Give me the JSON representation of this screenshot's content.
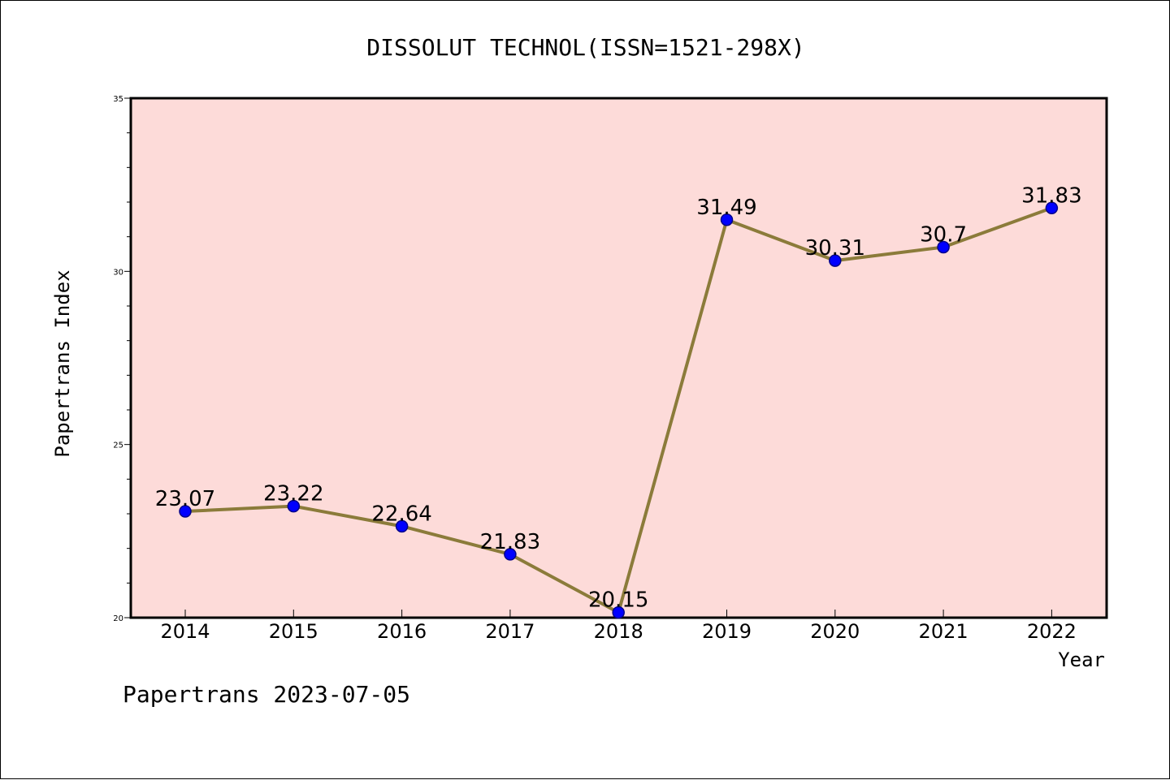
{
  "chart_data": {
    "type": "line",
    "title": "DISSOLUT TECHNOL(ISSN=1521-298X)",
    "xlabel": "Year",
    "ylabel": "Papertrans Index",
    "x": [
      "2014",
      "2015",
      "2016",
      "2017",
      "2018",
      "2019",
      "2020",
      "2021",
      "2022"
    ],
    "series": [
      {
        "values": [
          23.07,
          23.22,
          22.64,
          21.83,
          20.15,
          31.49,
          30.31,
          30.7,
          31.83
        ],
        "labels": [
          "23.07",
          "23.22",
          "22.64",
          "21.83",
          "20.15",
          "31.49",
          "30.31",
          "30.7",
          "31.83"
        ]
      }
    ],
    "ylim": [
      20,
      35
    ],
    "yticks": [
      20,
      25,
      30,
      35
    ],
    "ytick_labels": [
      "20",
      "25",
      "30",
      "35"
    ],
    "grid": false,
    "colors": {
      "plot_background": "#fddbd9",
      "line": "#8b7b3a",
      "marker": "#0000ff",
      "marker_edge": "#00008b"
    }
  },
  "footer": {
    "text": "Papertrans 2023-07-05"
  }
}
